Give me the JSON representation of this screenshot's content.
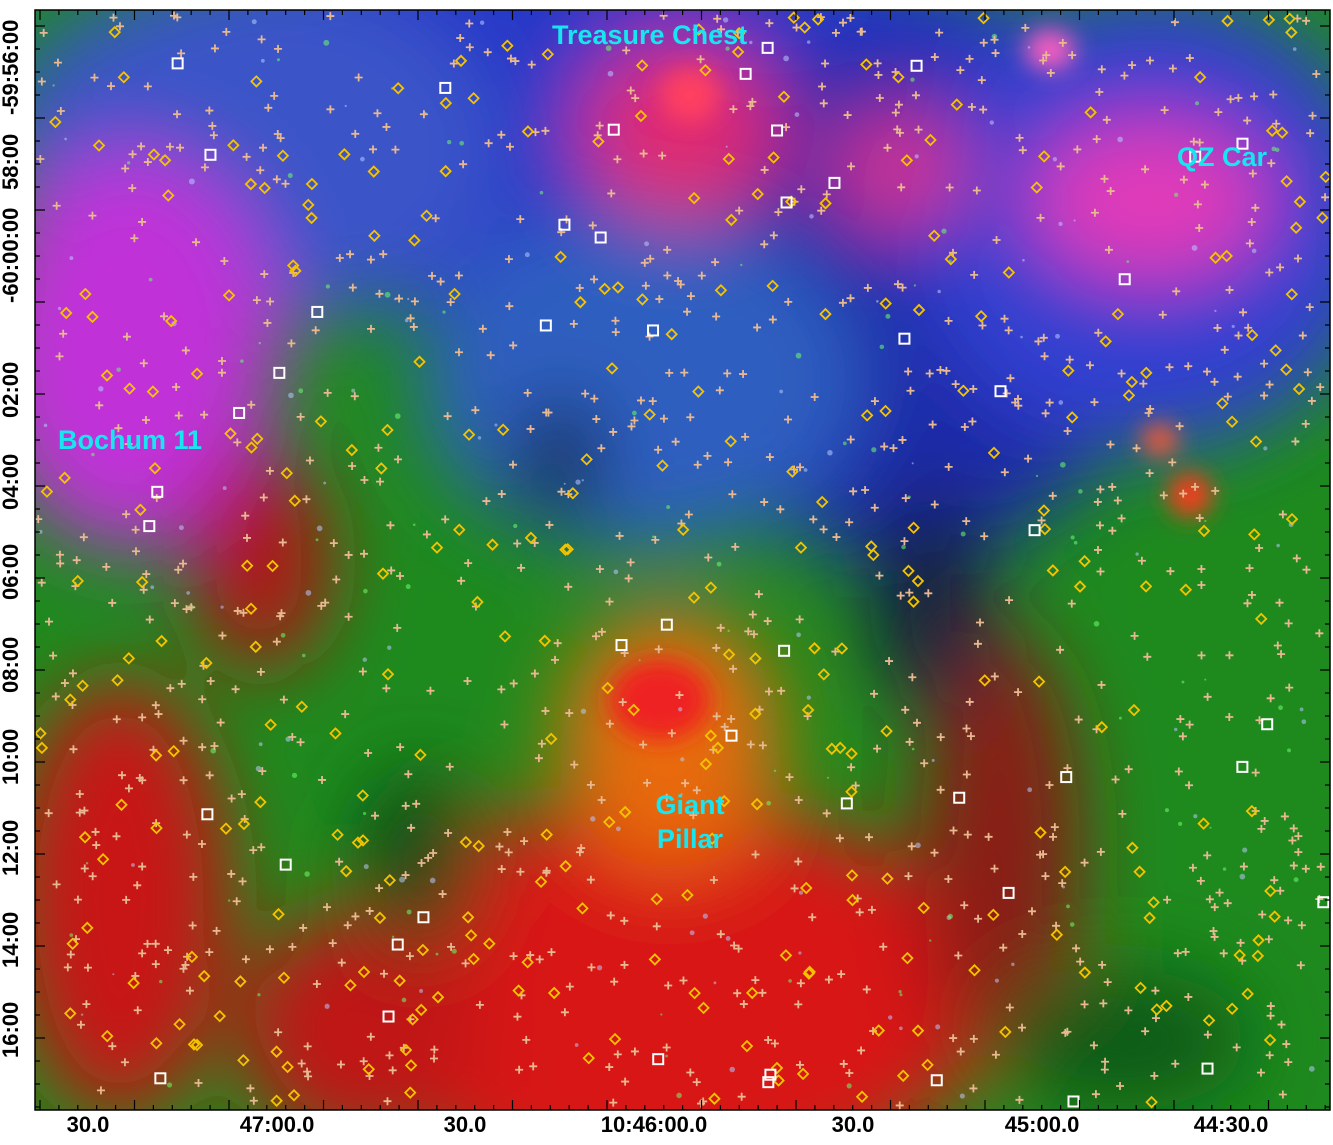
{
  "image": {
    "kind": "false-color astronomical mosaic with overlaid source markers",
    "colors": {
      "red_channel": "#e01010",
      "green_channel": "#19a019",
      "blue_channel": "#2030d0",
      "region_label": "#17e6f0",
      "marker_diamond": "#f5c400",
      "marker_cross": "#e8b890",
      "marker_square": "#ffffff"
    }
  },
  "labels": {
    "treasure_chest": "Treasure Chest",
    "oz_car": "QZ Car",
    "bochum": "Bochum 11",
    "pillar_line1": "Giant",
    "pillar_line2": "Pillar"
  },
  "x_axis": {
    "ticks": [
      "30.0",
      "47:00.0",
      "30.0",
      "10:46:00.0",
      "30.0",
      "45:00.0",
      "44:30.0"
    ]
  },
  "y_axis": {
    "ticks": [
      "-59:56:00",
      "58:00",
      "-60:00:00",
      "02:00",
      "04:00",
      "06:00",
      "08:00",
      "10:00",
      "12:00",
      "14:00",
      "16:00"
    ]
  }
}
